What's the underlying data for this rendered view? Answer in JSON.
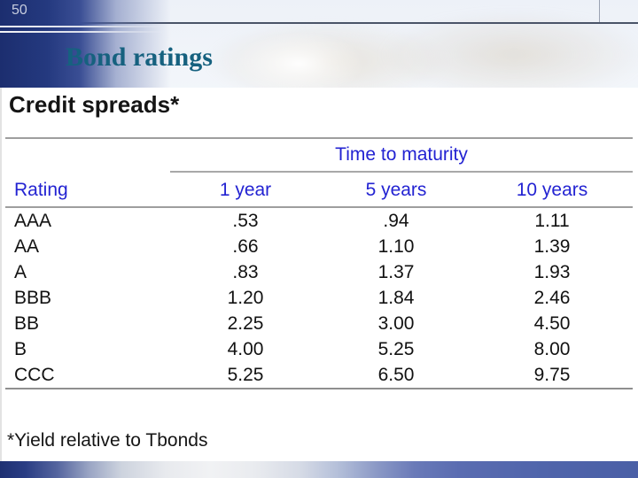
{
  "slide": {
    "number": "50",
    "title": "Bond ratings",
    "heading": "Credit spreads*",
    "footnote": "*Yield relative to Tbonds"
  },
  "table": {
    "group_header": "Time to maturity",
    "columns": [
      "Rating",
      "1 year",
      "5 years",
      "10 years"
    ],
    "rows": [
      {
        "rating": "AAA",
        "values": [
          ".53",
          ".94",
          "1.11"
        ]
      },
      {
        "rating": "AA",
        "values": [
          ".66",
          "1.10",
          "1.39"
        ]
      },
      {
        "rating": "A",
        "values": [
          ".83",
          "1.37",
          "1.93"
        ]
      },
      {
        "rating": "BBB",
        "values": [
          "1.20",
          "1.84",
          "2.46"
        ]
      },
      {
        "rating": "BB",
        "values": [
          "2.25",
          "3.00",
          "4.50"
        ]
      },
      {
        "rating": "B",
        "values": [
          "4.00",
          "5.25",
          "8.00"
        ]
      },
      {
        "rating": "CCC",
        "values": [
          "5.25",
          "6.50",
          "9.75"
        ]
      }
    ]
  },
  "colors": {
    "title_teal": "#16617f",
    "table_header_blue": "#2323d2",
    "band_navy": "#24397f",
    "bottom_bar_blue": "#5468ad",
    "rule_gray": "#9e9e9e"
  }
}
